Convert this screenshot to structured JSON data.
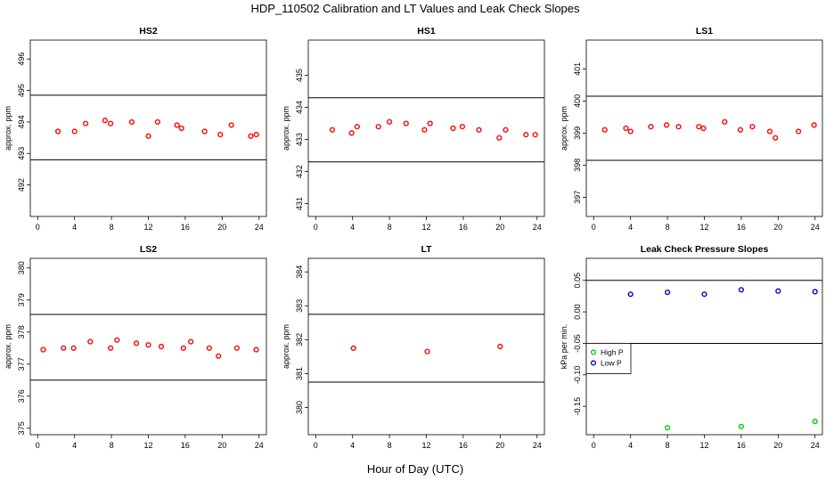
{
  "figure": {
    "title": "HDP_110502  Calibration and LT Values and Leak Check Slopes",
    "xlabel": "Hour of Day (UTC)"
  },
  "chart_data": [
    {
      "type": "scatter",
      "title": "HS2",
      "ylabel": "approx. ppm",
      "xlim": [
        -0.8,
        24.8
      ],
      "ylim": [
        491,
        496.6
      ],
      "xticks": [
        0,
        4,
        8,
        12,
        16,
        20,
        24
      ],
      "yticks": [
        492,
        493,
        494,
        495,
        496
      ],
      "hlines": [
        492.8,
        494.85
      ],
      "series": [
        {
          "color": "#ff0000",
          "x": [
            2.2,
            4.0,
            5.2,
            7.3,
            7.9,
            10.2,
            12.0,
            13.0,
            15.1,
            15.6,
            18.1,
            19.8,
            21.0,
            23.1,
            23.7
          ],
          "y": [
            493.7,
            493.7,
            493.95,
            494.05,
            493.95,
            494.0,
            493.55,
            494.0,
            493.9,
            493.8,
            493.7,
            493.6,
            493.9,
            493.55,
            493.6
          ]
        }
      ]
    },
    {
      "type": "scatter",
      "title": "HS1",
      "ylabel": "approx. ppm",
      "xlim": [
        -0.8,
        24.8
      ],
      "ylim": [
        430.6,
        436.1
      ],
      "xticks": [
        0,
        4,
        8,
        12,
        16,
        20,
        24
      ],
      "yticks": [
        431,
        432,
        433,
        434,
        435
      ],
      "hlines": [
        432.3,
        434.3
      ],
      "series": [
        {
          "color": "#ff0000",
          "x": [
            1.8,
            3.9,
            4.5,
            6.8,
            8.0,
            9.8,
            11.8,
            12.4,
            14.9,
            15.9,
            17.7,
            19.9,
            20.6,
            22.8,
            23.8
          ],
          "y": [
            433.3,
            433.2,
            433.4,
            433.4,
            433.55,
            433.5,
            433.3,
            433.5,
            433.35,
            433.4,
            433.3,
            433.05,
            433.3,
            433.15,
            433.15
          ]
        }
      ]
    },
    {
      "type": "scatter",
      "title": "LS1",
      "ylabel": "approx. ppm",
      "xlim": [
        -0.8,
        24.8
      ],
      "ylim": [
        396.4,
        401.9
      ],
      "xticks": [
        0,
        4,
        8,
        12,
        16,
        20,
        24
      ],
      "yticks": [
        397,
        398,
        399,
        400,
        401
      ],
      "hlines": [
        398.15,
        400.15
      ],
      "series": [
        {
          "color": "#ff0000",
          "x": [
            1.2,
            3.5,
            4.0,
            6.2,
            7.9,
            9.2,
            11.4,
            11.9,
            14.2,
            15.9,
            17.2,
            19.1,
            19.7,
            22.2,
            23.9
          ],
          "y": [
            399.1,
            399.15,
            399.05,
            399.2,
            399.25,
            399.2,
            399.2,
            399.15,
            399.35,
            399.1,
            399.2,
            399.05,
            398.85,
            399.05,
            399.25
          ]
        }
      ]
    },
    {
      "type": "scatter",
      "title": "LS2",
      "ylabel": "approx. ppm",
      "xlim": [
        -0.8,
        24.8
      ],
      "ylim": [
        374.8,
        380.3
      ],
      "xticks": [
        0,
        4,
        8,
        12,
        16,
        20,
        24
      ],
      "yticks": [
        375,
        376,
        377,
        378,
        379,
        380
      ],
      "hlines": [
        376.5,
        378.55
      ],
      "series": [
        {
          "color": "#ff0000",
          "x": [
            0.6,
            2.8,
            3.9,
            5.7,
            7.9,
            8.6,
            10.7,
            12.0,
            13.4,
            15.8,
            16.6,
            18.6,
            19.6,
            21.6,
            23.7
          ],
          "y": [
            377.45,
            377.5,
            377.5,
            377.7,
            377.5,
            377.75,
            377.65,
            377.6,
            377.55,
            377.5,
            377.7,
            377.5,
            377.25,
            377.5,
            377.45
          ]
        }
      ]
    },
    {
      "type": "scatter",
      "title": "LT",
      "ylabel": "approx. ppm",
      "xlim": [
        -0.8,
        24.8
      ],
      "ylim": [
        379.2,
        384.4
      ],
      "xticks": [
        0,
        4,
        8,
        12,
        16,
        20,
        24
      ],
      "yticks": [
        380,
        381,
        382,
        383,
        384
      ],
      "hlines": [
        380.75,
        382.75
      ],
      "series": [
        {
          "color": "#ff0000",
          "x": [
            4.1,
            12.1,
            20.0
          ],
          "y": [
            381.75,
            381.65,
            381.8
          ]
        }
      ]
    },
    {
      "type": "scatter",
      "title": "Leak Check Pressure Slopes",
      "ylabel": "kPa per min.",
      "xlim": [
        -0.8,
        24.8
      ],
      "ylim": [
        -0.195,
        0.085
      ],
      "xticks": [
        0,
        4,
        8,
        12,
        16,
        20,
        24
      ],
      "yticks": [
        -0.15,
        -0.1,
        -0.05,
        0.0,
        0.05
      ],
      "hlines": [
        -0.05,
        0.05
      ],
      "legend": {
        "position": "middle-left",
        "entries": [
          "High P",
          "Low P"
        ]
      },
      "series": [
        {
          "name": "High P",
          "color": "#00cc00",
          "x": [
            8.0,
            16.0,
            24.0
          ],
          "y": [
            -0.184,
            -0.182,
            -0.174
          ]
        },
        {
          "name": "Low P",
          "color": "#0000cc",
          "x": [
            4.0,
            8.0,
            12.0,
            16.0,
            20.0,
            24.0
          ],
          "y": [
            0.028,
            0.031,
            0.028,
            0.035,
            0.033,
            0.032
          ]
        }
      ]
    }
  ]
}
